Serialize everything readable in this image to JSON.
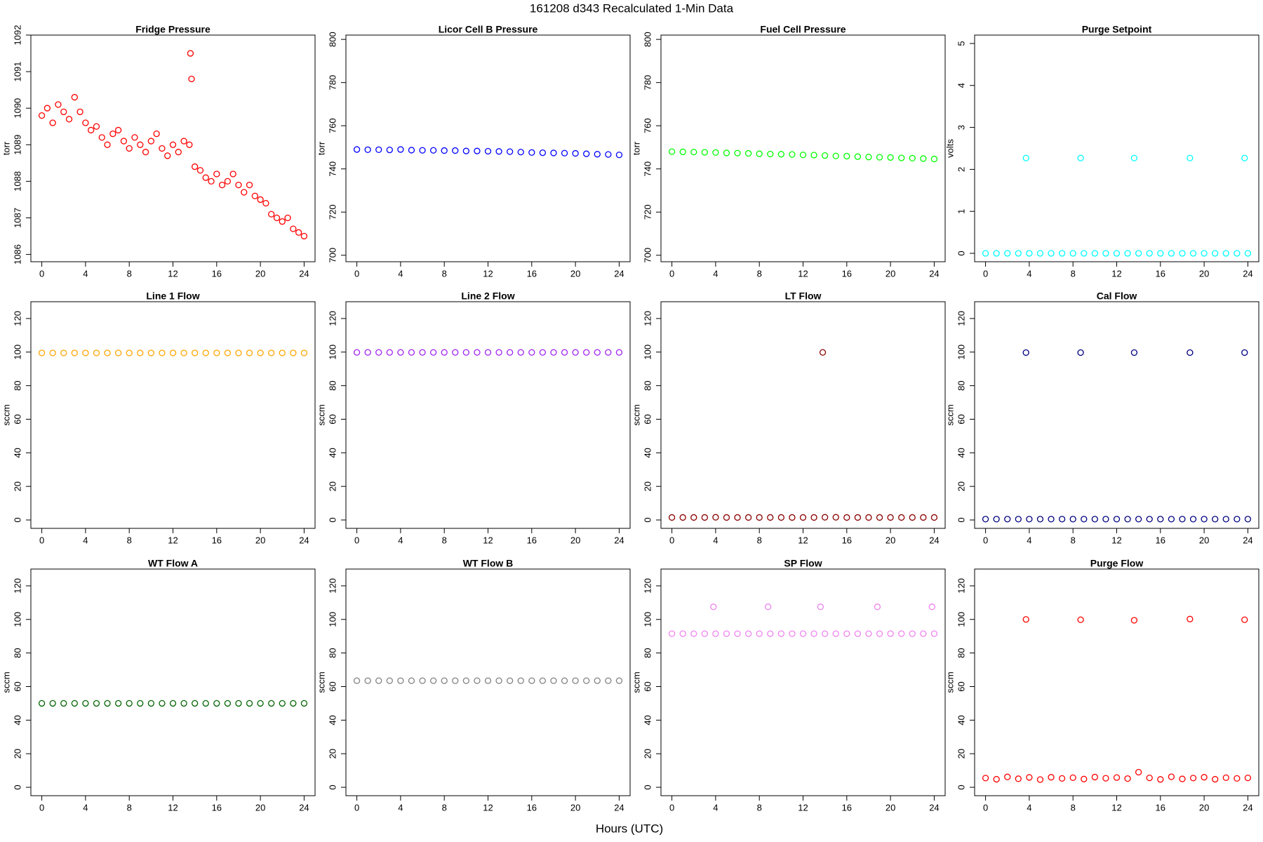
{
  "title": "161208   d343   Recalculated 1-Min Data",
  "xlabel": "Hours (UTC)",
  "chart_data": [
    {
      "type": "scatter",
      "title": "Fridge Pressure",
      "ylabel": "torr",
      "color": "#ff0000",
      "x": [
        0,
        0.5,
        1,
        1.5,
        2,
        2.5,
        3,
        3.5,
        4,
        4.5,
        5,
        5.5,
        6,
        6.5,
        7,
        7.5,
        8,
        8.5,
        9,
        9.5,
        10,
        10.5,
        11,
        11.5,
        12,
        12.5,
        13,
        13.5,
        13.6,
        13.7,
        14,
        14.5,
        15,
        15.5,
        16,
        16.5,
        17,
        17.5,
        18,
        18.5,
        19,
        19.5,
        20,
        20.5,
        21,
        21.5,
        22,
        22.5,
        23,
        23.5,
        24
      ],
      "values": [
        1089.8,
        1090.0,
        1089.6,
        1090.1,
        1089.9,
        1089.7,
        1090.3,
        1089.9,
        1089.6,
        1089.4,
        1089.5,
        1089.2,
        1089.0,
        1089.3,
        1089.4,
        1089.1,
        1088.9,
        1089.2,
        1089.0,
        1088.8,
        1089.1,
        1089.3,
        1088.9,
        1088.7,
        1089.0,
        1088.8,
        1089.1,
        1089.0,
        1091.5,
        1090.8,
        1088.4,
        1088.3,
        1088.1,
        1088.0,
        1088.2,
        1087.9,
        1088.0,
        1088.2,
        1087.9,
        1087.7,
        1087.9,
        1087.6,
        1087.5,
        1087.4,
        1087.1,
        1087.0,
        1086.9,
        1087.0,
        1086.7,
        1086.6,
        1086.5
      ],
      "xlim": [
        -1,
        25
      ],
      "xticks": [
        0,
        4,
        8,
        12,
        16,
        20,
        24
      ],
      "ylim": [
        1085.8,
        1092
      ],
      "yticks": [
        1086,
        1087,
        1088,
        1089,
        1090,
        1091,
        1092
      ]
    },
    {
      "type": "scatter",
      "title": "Licor Cell B Pressure",
      "ylabel": "torr",
      "color": "#0000ff",
      "x": [
        0,
        1,
        2,
        3,
        4,
        5,
        6,
        7,
        8,
        9,
        10,
        11,
        12,
        13,
        14,
        15,
        16,
        17,
        18,
        19,
        20,
        21,
        22,
        23,
        24
      ],
      "values": [
        749.0,
        748.9,
        748.9,
        748.8,
        749.0,
        748.7,
        748.6,
        748.6,
        748.5,
        748.5,
        748.3,
        748.3,
        748.2,
        748.1,
        748.0,
        747.8,
        747.6,
        747.5,
        747.4,
        747.3,
        747.2,
        747.0,
        746.8,
        746.7,
        746.5
      ],
      "xlim": [
        -1,
        25
      ],
      "xticks": [
        0,
        4,
        8,
        12,
        16,
        20,
        24
      ],
      "ylim": [
        697,
        802
      ],
      "yticks": [
        700,
        720,
        740,
        760,
        780,
        800
      ]
    },
    {
      "type": "scatter",
      "title": "Fuel Cell Pressure",
      "ylabel": "torr",
      "color": "#00ff00",
      "x": [
        0,
        1,
        2,
        3,
        4,
        5,
        6,
        7,
        8,
        9,
        10,
        11,
        12,
        13,
        14,
        15,
        16,
        17,
        18,
        19,
        20,
        21,
        22,
        23,
        24
      ],
      "values": [
        748.0,
        747.9,
        747.8,
        747.7,
        747.6,
        747.4,
        747.3,
        747.2,
        747.0,
        746.9,
        746.8,
        746.7,
        746.5,
        746.4,
        746.2,
        746.0,
        745.9,
        745.7,
        745.5,
        745.4,
        745.3,
        745.1,
        745.0,
        744.8,
        744.6
      ],
      "xlim": [
        -1,
        25
      ],
      "xticks": [
        0,
        4,
        8,
        12,
        16,
        20,
        24
      ],
      "ylim": [
        697,
        802
      ],
      "yticks": [
        700,
        720,
        740,
        760,
        780,
        800
      ]
    },
    {
      "type": "scatter",
      "title": "Purge Setpoint",
      "ylabel": "volts",
      "color": "#00ffff",
      "x": [
        0,
        1,
        2,
        3,
        3.7,
        4,
        5,
        6,
        7,
        8,
        8.7,
        9,
        10,
        11,
        12,
        13,
        13.6,
        14,
        15,
        16,
        17,
        18,
        18.7,
        19,
        20,
        21,
        22,
        23,
        23.7,
        24
      ],
      "values": [
        0,
        0,
        0,
        0,
        2.27,
        0,
        0,
        0,
        0,
        0,
        2.27,
        0,
        0,
        0,
        0,
        0,
        2.27,
        0,
        0,
        0,
        0,
        0,
        2.27,
        0,
        0,
        0,
        0,
        0,
        2.27,
        0
      ],
      "xlim": [
        -1,
        25
      ],
      "xticks": [
        0,
        4,
        8,
        12,
        16,
        20,
        24
      ],
      "ylim": [
        -0.2,
        5.2
      ],
      "yticks": [
        0,
        1,
        2,
        3,
        4,
        5
      ]
    },
    {
      "type": "scatter",
      "title": "Line 1 Flow",
      "ylabel": "sccm",
      "color": "#ffa500",
      "x": [
        0,
        1,
        2,
        3,
        4,
        5,
        6,
        7,
        8,
        9,
        10,
        11,
        12,
        13,
        14,
        15,
        16,
        17,
        18,
        19,
        20,
        21,
        22,
        23,
        24
      ],
      "values": [
        99.5,
        99.5,
        99.5,
        99.5,
        99.5,
        99.5,
        99.5,
        99.5,
        99.5,
        99.5,
        99.5,
        99.5,
        99.5,
        99.5,
        99.5,
        99.5,
        99.5,
        99.5,
        99.5,
        99.5,
        99.5,
        99.5,
        99.5,
        99.5,
        99.5
      ],
      "xlim": [
        -1,
        25
      ],
      "xticks": [
        0,
        4,
        8,
        12,
        16,
        20,
        24
      ],
      "ylim": [
        -5,
        130
      ],
      "yticks": [
        0,
        20,
        40,
        60,
        80,
        100,
        120
      ]
    },
    {
      "type": "scatter",
      "title": "Line 2 Flow",
      "ylabel": "sccm",
      "color": "#a020f0",
      "x": [
        0,
        1,
        2,
        3,
        4,
        5,
        6,
        7,
        8,
        9,
        10,
        11,
        12,
        13,
        14,
        15,
        16,
        17,
        18,
        19,
        20,
        21,
        22,
        23,
        24
      ],
      "values": [
        99.8,
        99.8,
        99.8,
        99.8,
        99.8,
        99.8,
        99.8,
        99.8,
        99.8,
        99.8,
        99.8,
        99.8,
        99.8,
        99.8,
        99.8,
        99.8,
        99.8,
        99.8,
        99.8,
        99.8,
        99.8,
        99.8,
        99.8,
        99.8,
        99.8
      ],
      "xlim": [
        -1,
        25
      ],
      "xticks": [
        0,
        4,
        8,
        12,
        16,
        20,
        24
      ],
      "ylim": [
        -5,
        130
      ],
      "yticks": [
        0,
        20,
        40,
        60,
        80,
        100,
        120
      ]
    },
    {
      "type": "scatter",
      "title": "LT Flow",
      "ylabel": "sccm",
      "color": "#8b0000",
      "x": [
        0,
        1,
        2,
        3,
        4,
        5,
        6,
        7,
        8,
        9,
        10,
        11,
        12,
        13,
        13.8,
        14,
        15,
        16,
        17,
        18,
        19,
        20,
        21,
        22,
        23,
        24
      ],
      "values": [
        1.5,
        1.5,
        1.5,
        1.5,
        1.6,
        1.5,
        1.5,
        1.5,
        1.5,
        1.5,
        1.5,
        1.5,
        1.5,
        1.5,
        99.8,
        1.6,
        1.6,
        1.5,
        1.5,
        1.5,
        1.5,
        1.5,
        1.5,
        1.5,
        1.5,
        1.5
      ],
      "xlim": [
        -1,
        25
      ],
      "xticks": [
        0,
        4,
        8,
        12,
        16,
        20,
        24
      ],
      "ylim": [
        -5,
        130
      ],
      "yticks": [
        0,
        20,
        40,
        60,
        80,
        100,
        120
      ]
    },
    {
      "type": "scatter",
      "title": "Cal Flow",
      "ylabel": "sccm",
      "color": "#000080",
      "x": [
        0,
        1,
        2,
        3,
        3.7,
        4,
        5,
        6,
        7,
        8,
        8.7,
        9,
        10,
        11,
        12,
        13,
        13.6,
        14,
        15,
        16,
        17,
        18,
        18.7,
        19,
        20,
        21,
        22,
        23,
        23.7,
        24
      ],
      "values": [
        0.5,
        0.5,
        0.5,
        0.5,
        99.7,
        0.5,
        0.5,
        0.5,
        0.5,
        0.5,
        99.7,
        0.5,
        0.5,
        0.5,
        0.5,
        0.5,
        99.7,
        0.5,
        0.5,
        0.5,
        0.5,
        0.5,
        99.7,
        0.5,
        0.5,
        0.5,
        0.5,
        0.5,
        99.7,
        0.5
      ],
      "xlim": [
        -1,
        25
      ],
      "xticks": [
        0,
        4,
        8,
        12,
        16,
        20,
        24
      ],
      "ylim": [
        -5,
        130
      ],
      "yticks": [
        0,
        20,
        40,
        60,
        80,
        100,
        120
      ]
    },
    {
      "type": "scatter",
      "title": "WT Flow A",
      "ylabel": "sccm",
      "color": "#006400",
      "x": [
        0,
        1,
        2,
        3,
        4,
        5,
        6,
        7,
        8,
        9,
        10,
        11,
        12,
        13,
        14,
        15,
        16,
        17,
        18,
        19,
        20,
        21,
        22,
        23,
        24
      ],
      "values": [
        50,
        50,
        50,
        50,
        50,
        50,
        50,
        50,
        50,
        50,
        50,
        50,
        50,
        50,
        50,
        50,
        50,
        50,
        50,
        50,
        50,
        50,
        50,
        50,
        50
      ],
      "xlim": [
        -1,
        25
      ],
      "xticks": [
        0,
        4,
        8,
        12,
        16,
        20,
        24
      ],
      "ylim": [
        -5,
        130
      ],
      "yticks": [
        0,
        20,
        40,
        60,
        80,
        100,
        120
      ]
    },
    {
      "type": "scatter",
      "title": "WT Flow B",
      "ylabel": "sccm",
      "color": "#808080",
      "x": [
        0,
        1,
        2,
        3,
        4,
        5,
        6,
        7,
        8,
        9,
        10,
        11,
        12,
        13,
        14,
        15,
        16,
        17,
        18,
        19,
        20,
        21,
        22,
        23,
        24
      ],
      "values": [
        63.5,
        63.5,
        63.5,
        63.5,
        63.5,
        63.5,
        63.5,
        63.5,
        63.5,
        63.5,
        63.5,
        63.5,
        63.5,
        63.5,
        63.5,
        63.5,
        63.5,
        63.5,
        63.5,
        63.5,
        63.5,
        63.5,
        63.5,
        63.5,
        63.5
      ],
      "xlim": [
        -1,
        25
      ],
      "xticks": [
        0,
        4,
        8,
        12,
        16,
        20,
        24
      ],
      "ylim": [
        -5,
        130
      ],
      "yticks": [
        0,
        20,
        40,
        60,
        80,
        100,
        120
      ]
    },
    {
      "type": "scatter",
      "title": "SP Flow",
      "ylabel": "sccm",
      "color": "#ee82ee",
      "x": [
        0,
        1,
        2,
        3,
        3.8,
        4,
        5,
        6,
        7,
        8,
        8.8,
        9,
        10,
        11,
        12,
        13,
        13.6,
        14,
        15,
        16,
        17,
        18,
        18.8,
        19,
        20,
        21,
        22,
        23,
        23.8,
        24
      ],
      "values": [
        91.5,
        91.5,
        91.5,
        91.5,
        107.5,
        91.5,
        91.5,
        91.5,
        91.5,
        91.5,
        107.5,
        91.5,
        91.5,
        91.5,
        91.5,
        91.5,
        107.5,
        91.5,
        91.5,
        91.5,
        91.5,
        91.5,
        107.5,
        91.5,
        91.5,
        91.5,
        91.5,
        91.5,
        107.5,
        91.5
      ],
      "xlim": [
        -1,
        25
      ],
      "xticks": [
        0,
        4,
        8,
        12,
        16,
        20,
        24
      ],
      "ylim": [
        -5,
        130
      ],
      "yticks": [
        0,
        20,
        40,
        60,
        80,
        100,
        120
      ]
    },
    {
      "type": "scatter",
      "title": "Purge Flow",
      "ylabel": "sccm",
      "color": "#ff0000",
      "x": [
        0,
        1,
        2,
        3,
        3.7,
        4,
        5,
        6,
        7,
        8,
        8.7,
        9,
        10,
        11,
        12,
        13,
        13.6,
        14,
        15,
        16,
        17,
        18,
        18.7,
        19,
        20,
        21,
        22,
        23,
        23.7,
        24
      ],
      "values": [
        5.5,
        4.8,
        6.2,
        5.1,
        100,
        5.9,
        4.6,
        6.0,
        5.3,
        5.7,
        99.8,
        4.9,
        6.1,
        5.4,
        5.8,
        5.2,
        99.5,
        9,
        5.6,
        4.7,
        6.3,
        5.0,
        100.2,
        5.5,
        6.0,
        4.8,
        5.7,
        5.3,
        99.8,
        5.6
      ],
      "xlim": [
        -1,
        25
      ],
      "xticks": [
        0,
        4,
        8,
        12,
        16,
        20,
        24
      ],
      "ylim": [
        -5,
        130
      ],
      "yticks": [
        0,
        20,
        40,
        60,
        80,
        100,
        120
      ]
    }
  ]
}
